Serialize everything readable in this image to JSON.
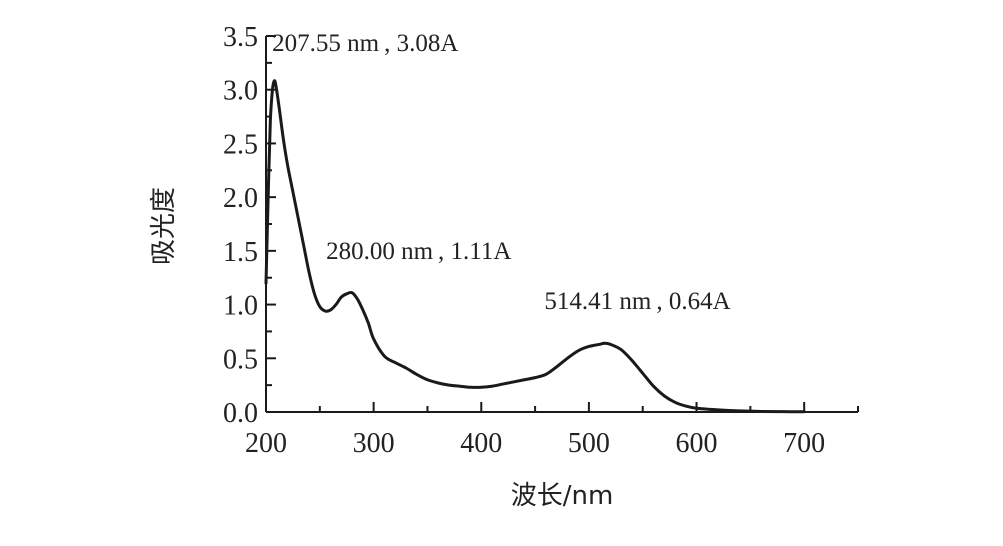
{
  "chart_data": {
    "type": "line",
    "xlabel": "波长/nm",
    "ylabel": "吸光度",
    "xlim": [
      200,
      750
    ],
    "ylim": [
      0,
      3.5
    ],
    "x_ticks": [
      200,
      300,
      400,
      500,
      600,
      700
    ],
    "x_tick_labels": [
      "200",
      "300",
      "400",
      "500",
      "600",
      "700"
    ],
    "y_ticks": [
      0,
      0.5,
      1.0,
      1.5,
      2.0,
      2.5,
      3.0,
      3.5
    ],
    "y_tick_labels": [
      "0.0",
      "0.5",
      "1.0",
      "1.5",
      "2.0",
      "2.5",
      "3.0",
      "3.5"
    ],
    "grid": false,
    "series": [
      {
        "x": [
          200,
          202,
          204,
          206,
          207.55,
          209,
          212,
          216,
          220,
          225,
          230,
          235,
          240,
          245,
          250,
          255,
          260,
          265,
          270,
          275,
          280,
          285,
          290,
          295,
          300,
          310,
          320,
          330,
          340,
          350,
          360,
          370,
          380,
          390,
          400,
          410,
          420,
          430,
          440,
          450,
          460,
          470,
          480,
          490,
          500,
          510,
          514.41,
          520,
          530,
          540,
          550,
          560,
          570,
          580,
          590,
          600,
          620,
          640,
          660,
          680,
          700
        ],
        "y": [
          1.2,
          2.0,
          2.7,
          3.0,
          3.08,
          3.05,
          2.85,
          2.55,
          2.3,
          2.05,
          1.8,
          1.55,
          1.3,
          1.1,
          0.98,
          0.94,
          0.95,
          1.0,
          1.07,
          1.1,
          1.11,
          1.05,
          0.95,
          0.83,
          0.68,
          0.52,
          0.46,
          0.41,
          0.35,
          0.3,
          0.27,
          0.25,
          0.24,
          0.23,
          0.23,
          0.24,
          0.26,
          0.28,
          0.3,
          0.32,
          0.35,
          0.42,
          0.5,
          0.57,
          0.61,
          0.63,
          0.64,
          0.63,
          0.58,
          0.48,
          0.36,
          0.24,
          0.15,
          0.09,
          0.055,
          0.035,
          0.02,
          0.01,
          0.005,
          0.003,
          0.002
        ]
      }
    ],
    "annotations": [
      {
        "text": "207.55 nm , 3.08A",
        "x": 207.55,
        "y": 3.08
      },
      {
        "text": "280.00 nm , 1.11A",
        "x": 280,
        "y": 1.11
      },
      {
        "text": "514.41 nm , 0.64A",
        "x": 514.41,
        "y": 0.64
      }
    ],
    "line_color": "#1a1a1a"
  }
}
